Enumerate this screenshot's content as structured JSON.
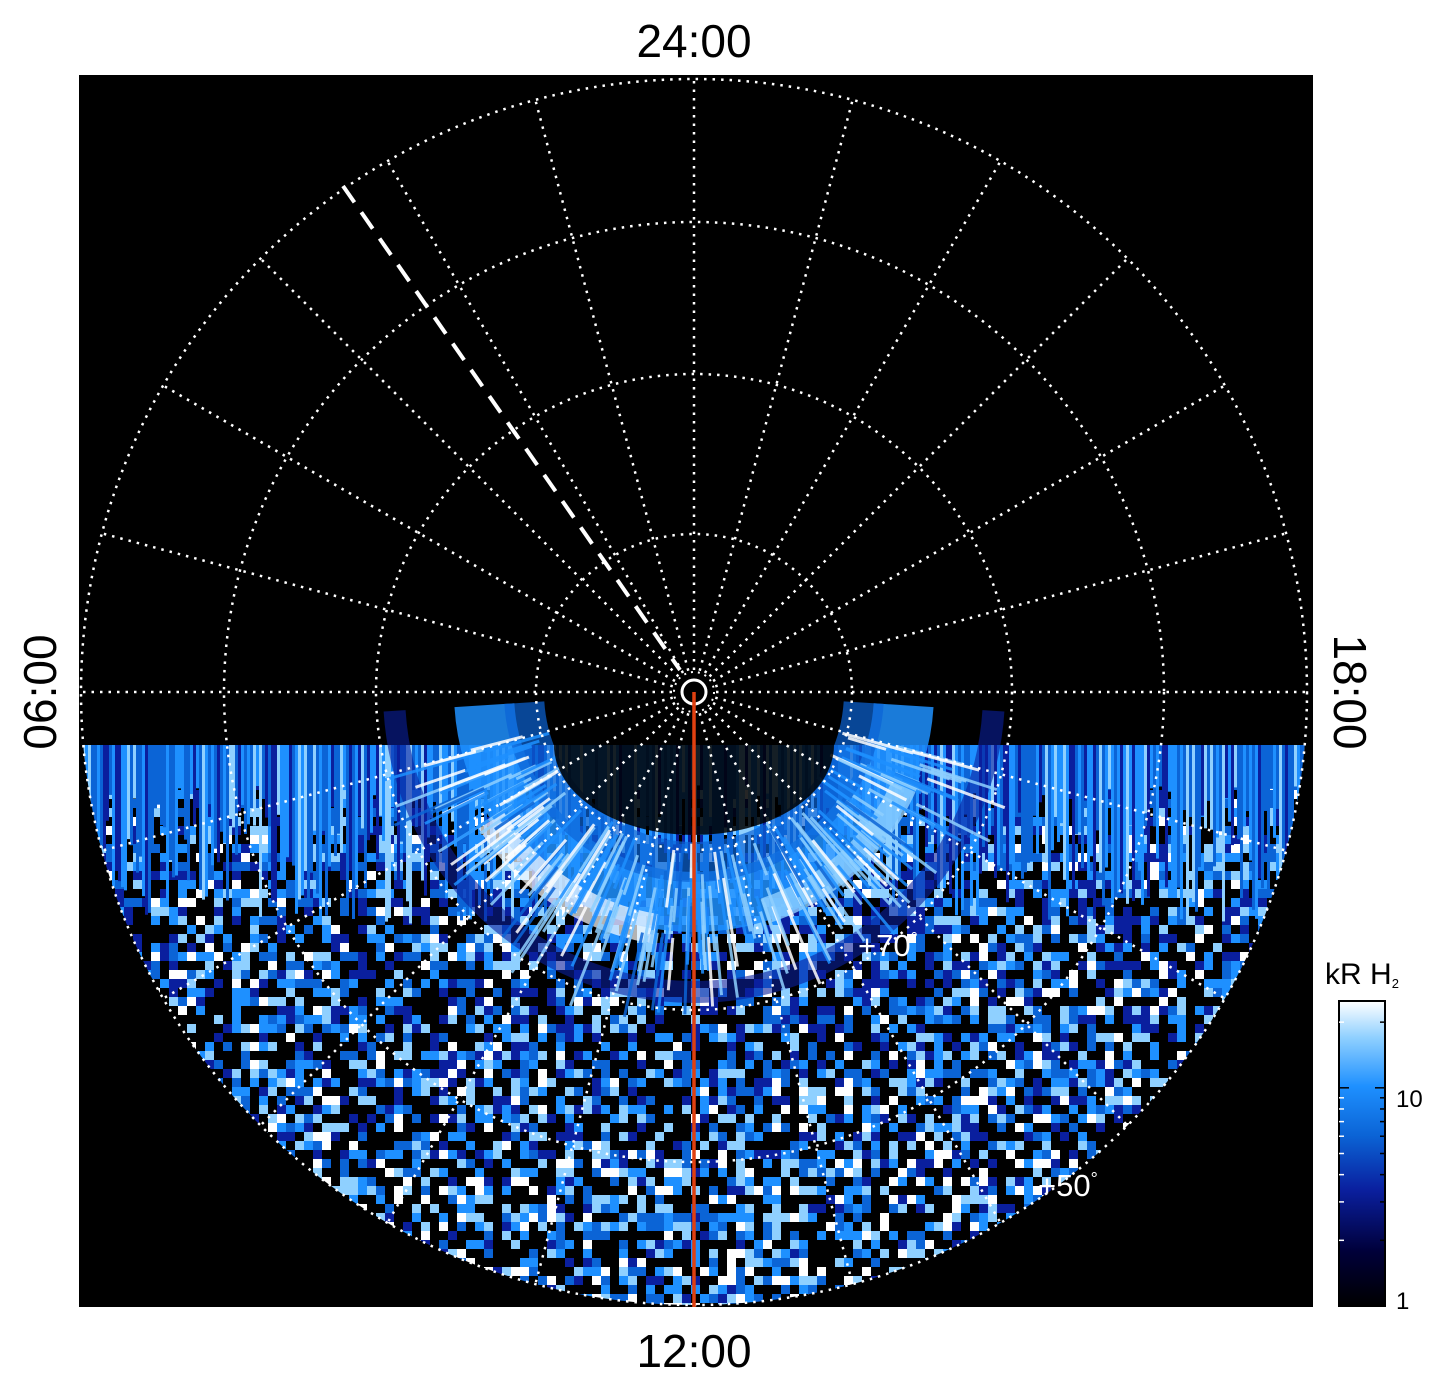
{
  "figure": {
    "local_time_labels": {
      "top": "24:00",
      "bottom": "12:00",
      "left": "06:00",
      "right": "18:00"
    },
    "latitude_labels": [
      "+70",
      "+50"
    ],
    "degree_symbol": "°",
    "colorbar": {
      "unit_main": "kR H",
      "unit_sub": "2",
      "ticks": [
        "10",
        "1"
      ],
      "scale": "log",
      "colors": [
        "#000000",
        "#00003a",
        "#0a1f9e",
        "#0b64d6",
        "#1e90ff",
        "#8fd0ff",
        "#ffffff"
      ]
    },
    "grid_color": "#ffffff",
    "meridian_line_color": "#e04010",
    "background_color": "#000000"
  }
}
